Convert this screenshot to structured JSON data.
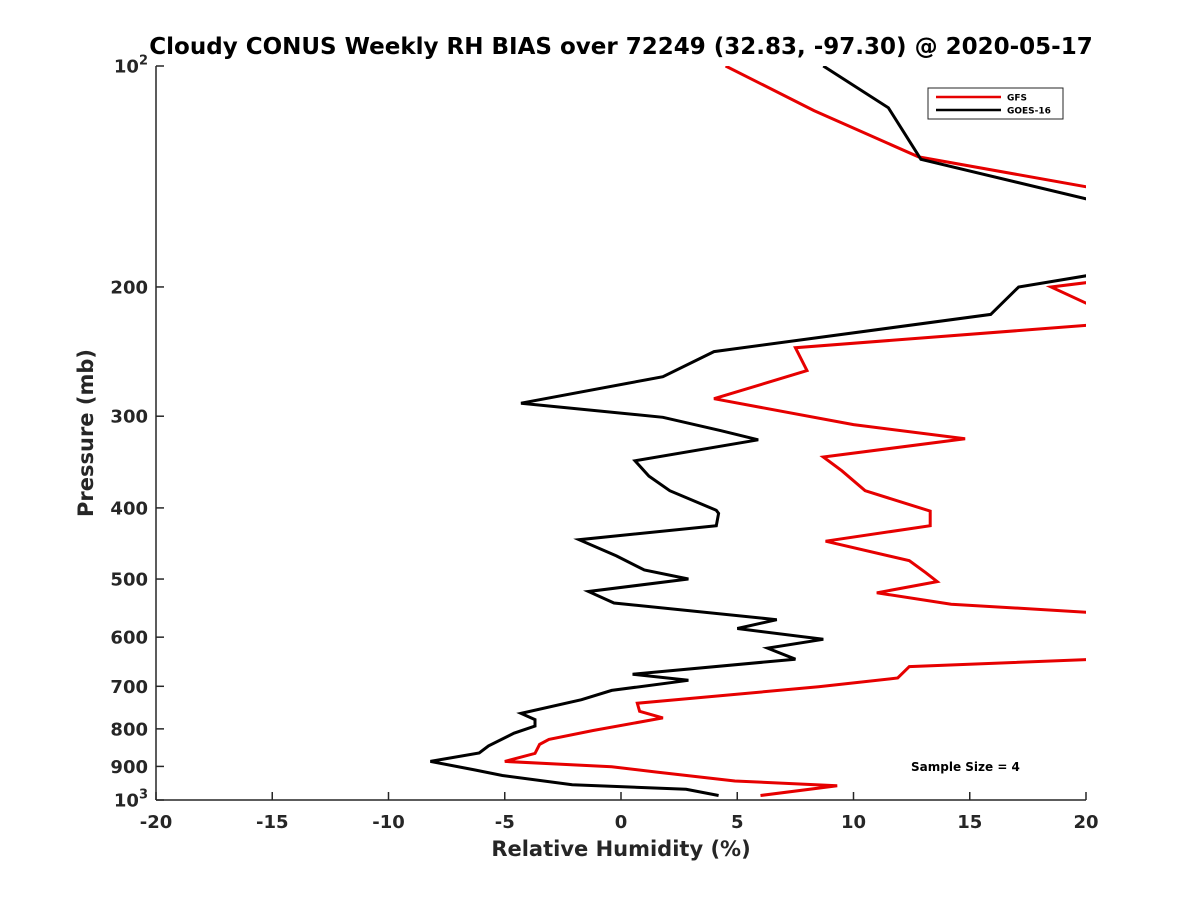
{
  "chart_data": {
    "type": "line",
    "title": "Cloudy CONUS Weekly RH BIAS over 72249 (32.83, -97.30) @ 2020-05-17",
    "xlabel": "Relative Humidity (%)",
    "ylabel": "Pressure (mb)",
    "xlim": [
      -20,
      20
    ],
    "ylim": [
      100,
      1000
    ],
    "y_scale": "log",
    "y_reversed": true,
    "grid": false,
    "x_ticks": [
      -20,
      -15,
      -10,
      -5,
      0,
      5,
      10,
      15,
      20
    ],
    "y_ticks": [
      {
        "value": 100,
        "base": "10",
        "exp": "2"
      },
      {
        "value": 200,
        "label": "200"
      },
      {
        "value": 300,
        "label": "300"
      },
      {
        "value": 400,
        "label": "400"
      },
      {
        "value": 500,
        "label": "500"
      },
      {
        "value": 600,
        "label": "600"
      },
      {
        "value": 700,
        "label": "700"
      },
      {
        "value": 800,
        "label": "800"
      },
      {
        "value": 900,
        "label": "900"
      },
      {
        "value": 1000,
        "base": "10",
        "exp": "3"
      }
    ],
    "legend_position": "top-right",
    "annotation": "Sample Size = 4",
    "series": [
      {
        "name": "GFS",
        "color": "#e60000",
        "points": [
          [
            4.5,
            100
          ],
          [
            8.3,
            115
          ],
          [
            12.8,
            133
          ],
          [
            20.5,
            147
          ],
          [
            20.2,
            197
          ],
          [
            18.5,
            200
          ],
          [
            20.5,
            214
          ],
          [
            20.5,
            225
          ],
          [
            7.5,
            242
          ],
          [
            8.0,
            260
          ],
          [
            4.0,
            284
          ],
          [
            10.0,
            308
          ],
          [
            14.8,
            322
          ],
          [
            8.7,
            341
          ],
          [
            9.5,
            356
          ],
          [
            10.5,
            379
          ],
          [
            13.3,
            404
          ],
          [
            13.3,
            423
          ],
          [
            8.8,
            444
          ],
          [
            12.4,
            472
          ],
          [
            13.1,
            490
          ],
          [
            13.6,
            504
          ],
          [
            11.0,
            522
          ],
          [
            14.2,
            541
          ],
          [
            20.5,
            556
          ],
          [
            20.5,
            643
          ],
          [
            12.4,
            658
          ],
          [
            11.9,
            682
          ],
          [
            8.5,
            701
          ],
          [
            0.7,
            738
          ],
          [
            0.8,
            757
          ],
          [
            1.8,
            773
          ],
          [
            -1.2,
            804
          ],
          [
            -3.1,
            827
          ],
          [
            -3.5,
            840
          ],
          [
            -3.7,
            864
          ],
          [
            -5.0,
            886
          ],
          [
            -0.4,
            901
          ],
          [
            1.5,
            916
          ],
          [
            4.9,
            942
          ],
          [
            9.3,
            956
          ],
          [
            6.0,
            986
          ]
        ]
      },
      {
        "name": "GOES-16",
        "color": "#000000",
        "points": [
          [
            8.7,
            100
          ],
          [
            11.5,
            114
          ],
          [
            12.9,
            134
          ],
          [
            20.5,
            153
          ],
          [
            20.5,
            192
          ],
          [
            17.1,
            200
          ],
          [
            15.9,
            218
          ],
          [
            4.0,
            245
          ],
          [
            1.8,
            265
          ],
          [
            -4.3,
            288
          ],
          [
            1.8,
            301
          ],
          [
            4.3,
            314
          ],
          [
            5.9,
            323
          ],
          [
            0.6,
            345
          ],
          [
            1.2,
            362
          ],
          [
            2.1,
            379
          ],
          [
            4.1,
            403
          ],
          [
            4.2,
            407
          ],
          [
            4.1,
            423
          ],
          [
            -1.8,
            442
          ],
          [
            -0.2,
            465
          ],
          [
            1.0,
            486
          ],
          [
            2.9,
            500
          ],
          [
            -1.4,
            520
          ],
          [
            -0.3,
            539
          ],
          [
            6.7,
            568
          ],
          [
            5.0,
            584
          ],
          [
            8.7,
            604
          ],
          [
            6.3,
            621
          ],
          [
            7.5,
            643
          ],
          [
            0.5,
            674
          ],
          [
            2.9,
            687
          ],
          [
            -0.4,
            709
          ],
          [
            -1.7,
            730
          ],
          [
            -4.3,
            762
          ],
          [
            -3.7,
            777
          ],
          [
            -3.7,
            793
          ],
          [
            -4.6,
            811
          ],
          [
            -5.7,
            844
          ],
          [
            -6.1,
            863
          ],
          [
            -8.2,
            886
          ],
          [
            -6.3,
            910
          ],
          [
            -5.1,
            926
          ],
          [
            -2.1,
            953
          ],
          [
            2.8,
            967
          ],
          [
            4.2,
            986
          ]
        ]
      }
    ]
  }
}
